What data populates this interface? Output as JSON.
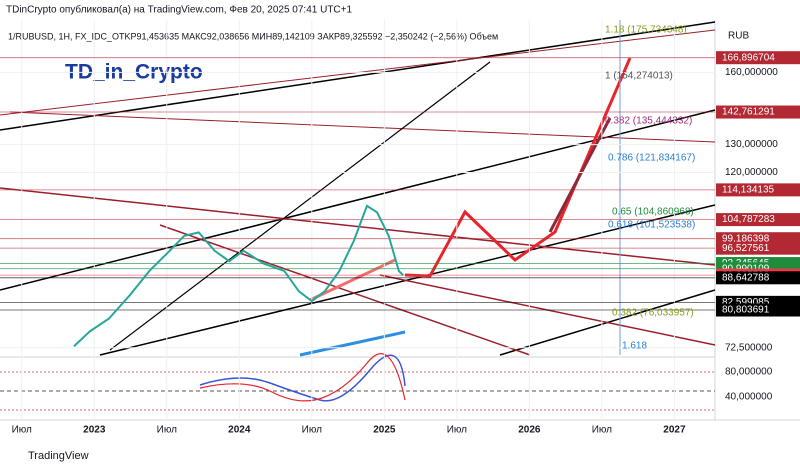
{
  "header": {
    "publisher": "TDinCrypto опубликовал(а) на TradingView.com, Фев 20, 2025 07:41 UTC+1",
    "footer": "TradingView"
  },
  "chart_data": {
    "type": "line",
    "symbol_line": "1/RUBUSD, 1H, FX_IDC_OTKP91,453635 МАКС92,038656 МИН89,142109 ЗАКР89,325592 −2,350242 (−2,56%) Объем",
    "watermark": "TD_in_Crypto",
    "currency": "RUB",
    "log_scale": true,
    "grid": true,
    "xlim": [
      2022.35,
      2027.28
    ],
    "ylim": [
      71,
      186
    ],
    "xticks": [
      {
        "value": 2022.5,
        "label": "Июл"
      },
      2023,
      {
        "value": 2023.5,
        "label": "Июл"
      },
      2024,
      {
        "value": 2024.5,
        "label": "Июл"
      },
      2025,
      {
        "value": 2025.5,
        "label": "Июл"
      },
      2026,
      {
        "value": 2026.5,
        "label": "Июл"
      },
      2027
    ],
    "yticks": [
      {
        "value": 72.5,
        "label": "72,500000"
      },
      {
        "value": 120,
        "label": "120,000000"
      },
      {
        "value": 130,
        "label": "130,000000"
      },
      {
        "value": 160,
        "label": "160,000000"
      }
    ],
    "oscillator_ticks": [
      {
        "value": 80,
        "label": "80,000000"
      },
      {
        "value": 40,
        "label": "40,000000"
      }
    ],
    "series": [
      {
        "name": "1/RUBUSD",
        "color": "#26a69a",
        "x": [
          2022.86,
          2022.97,
          2023.1,
          2023.24,
          2023.38,
          2023.52,
          2023.62,
          2023.72,
          2023.83,
          2023.93,
          2024.03,
          2024.17,
          2024.31,
          2024.41,
          2024.5,
          2024.59,
          2024.69,
          2024.79,
          2024.88,
          2024.95,
          2025.03,
          2025.1,
          2025.13
        ],
        "values": [
          72.8,
          76,
          78.8,
          84.1,
          90.4,
          95.8,
          100,
          101,
          95.8,
          93,
          95.8,
          92.3,
          90.4,
          85.3,
          82.9,
          85.3,
          90.4,
          98.6,
          109,
          107,
          100,
          90.4,
          89.3
        ]
      }
    ],
    "levels": [
      {
        "value": 166.896704,
        "label": "166,896704",
        "color": "#b22833"
      },
      {
        "value": 142.761291,
        "label": "142,761291",
        "color": "#b22833"
      },
      {
        "value": 114.134135,
        "label": "114,134135",
        "color": "#b22833"
      },
      {
        "value": 104.787283,
        "label": "104,787283",
        "color": "#b22833"
      },
      {
        "value": 99.186398,
        "label": "99,186398",
        "color": "#b22833"
      },
      {
        "value": 96.527561,
        "label": "96,527561",
        "color": "#b22833"
      },
      {
        "value": 92.345645,
        "label": "92,345645",
        "color": "#1e8c3a"
      },
      {
        "value": 90.990109,
        "label": "90,990109",
        "color": "#1e8c3a"
      },
      {
        "value": 89.325592,
        "label": "89,325592",
        "color": "#f23645"
      },
      {
        "value": 88.642788,
        "label": "88,642788",
        "color": "#000000"
      },
      {
        "value": 82.599085,
        "label": "82,599085",
        "color": "#000000"
      },
      {
        "value": 80.803691,
        "label": "80,803691",
        "color": "#000000"
      }
    ],
    "annotations": [
      "1.18 (175,734348)",
      "1 (154,274013)",
      "0.382 (135,444332)",
      "0.786 (121,834167)",
      "0.65 (104,860968)",
      "0.618 (101,523538)",
      "0.382 (76,033957)",
      "1.618"
    ]
  }
}
